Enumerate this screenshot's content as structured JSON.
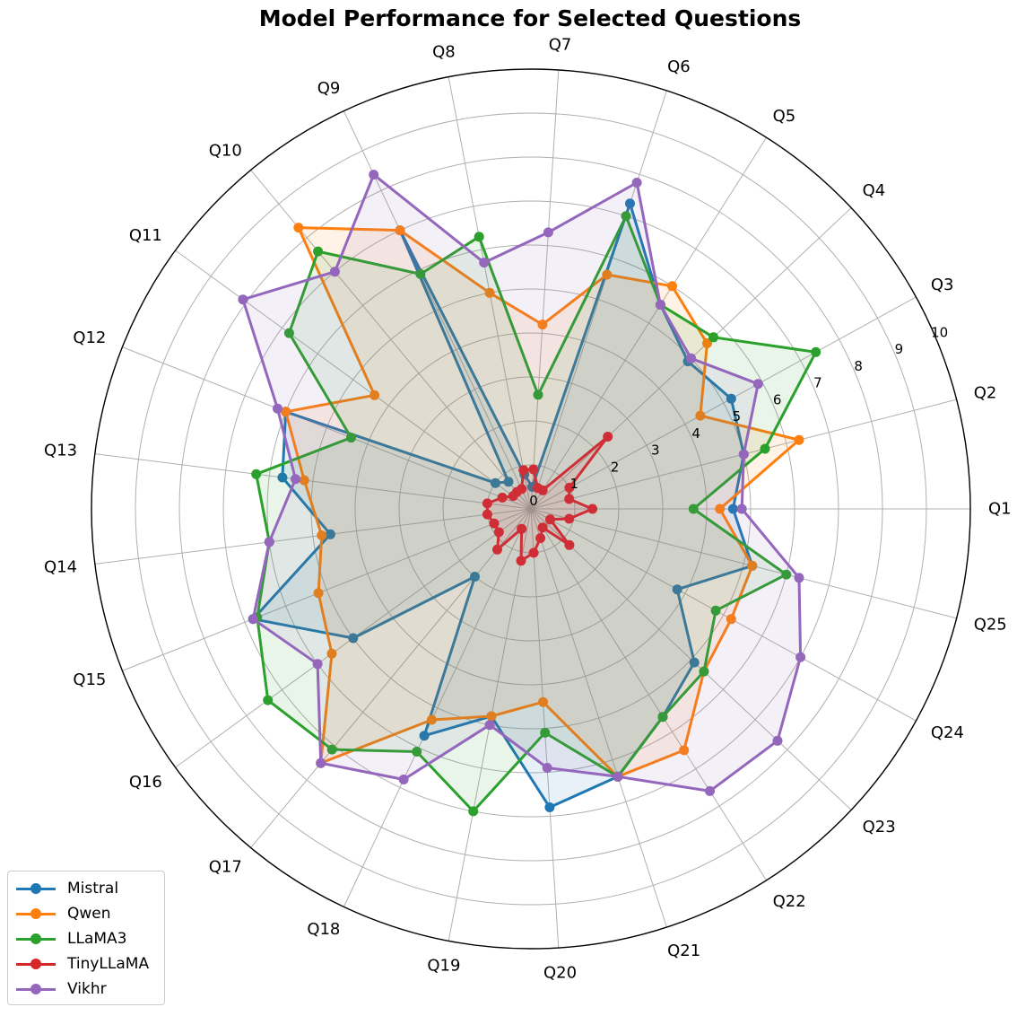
{
  "chart_data": {
    "type": "radar",
    "title": "Model Performance for Selected Questions",
    "categories": [
      "Q1",
      "Q2",
      "Q3",
      "Q4",
      "Q5",
      "Q6",
      "Q7",
      "Q8",
      "Q9",
      "Q10",
      "Q11",
      "Q12",
      "Q13",
      "Q14",
      "Q15",
      "Q16",
      "Q17",
      "Q18",
      "Q19",
      "Q20",
      "Q21",
      "Q22",
      "Q23",
      "Q24",
      "Q25"
    ],
    "rlim": [
      0,
      10
    ],
    "rticks": [
      "0",
      "1",
      "2",
      "3",
      "4",
      "5",
      "6",
      "7",
      "8",
      "9",
      "10"
    ],
    "grid": true,
    "legend_position": "lower-left",
    "series": [
      {
        "name": "Mistral",
        "color": "#1f77b4",
        "values": [
          4.6,
          5.0,
          5.2,
          4.9,
          5.5,
          7.3,
          0.5,
          0.8,
          7.0,
          0.8,
          1.0,
          6.0,
          5.7,
          4.6,
          6.8,
          5.0,
          2.0,
          5.7,
          4.8,
          6.8,
          6.4,
          5.6,
          5.1,
          3.8,
          5.2
        ]
      },
      {
        "name": "Qwen",
        "color": "#ff7f0e",
        "values": [
          4.3,
          6.3,
          4.4,
          5.5,
          6.0,
          5.6,
          4.2,
          5.0,
          7.0,
          8.3,
          4.4,
          6.0,
          5.2,
          4.8,
          5.2,
          5.6,
          7.5,
          5.3,
          4.8,
          4.4,
          6.4,
          6.5,
          5.4,
          5.2,
          5.2
        ]
      },
      {
        "name": "LLaMA3",
        "color": "#2ca02c",
        "values": [
          3.7,
          5.5,
          7.4,
          5.7,
          5.5,
          7.0,
          2.6,
          6.3,
          5.9,
          7.6,
          6.8,
          4.4,
          6.3,
          6.0,
          6.7,
          7.4,
          7.1,
          6.1,
          7.0,
          5.1,
          6.4,
          5.6,
          5.4,
          4.8,
          6.0
        ]
      },
      {
        "name": "TinyLLaMA",
        "color": "#d62728",
        "values": [
          1.4,
          0.9,
          1.0,
          2.4,
          0.5,
          0.5,
          0.9,
          0.9,
          0.5,
          0.5,
          0.5,
          0.7,
          1.0,
          1.0,
          0.9,
          0.9,
          1.2,
          0.5,
          1.2,
          1.0,
          0.7,
          0.5,
          1.2,
          0.5,
          0.9
        ]
      },
      {
        "name": "Vikhr",
        "color": "#9467bd",
        "values": [
          4.8,
          5.0,
          5.9,
          5.0,
          5.5,
          7.8,
          6.3,
          5.7,
          8.4,
          7.0,
          8.1,
          6.2,
          5.4,
          6.0,
          6.8,
          6.0,
          7.5,
          6.8,
          5.0,
          5.9,
          6.4,
          7.6,
          7.7,
          7.0,
          6.3
        ]
      }
    ]
  }
}
